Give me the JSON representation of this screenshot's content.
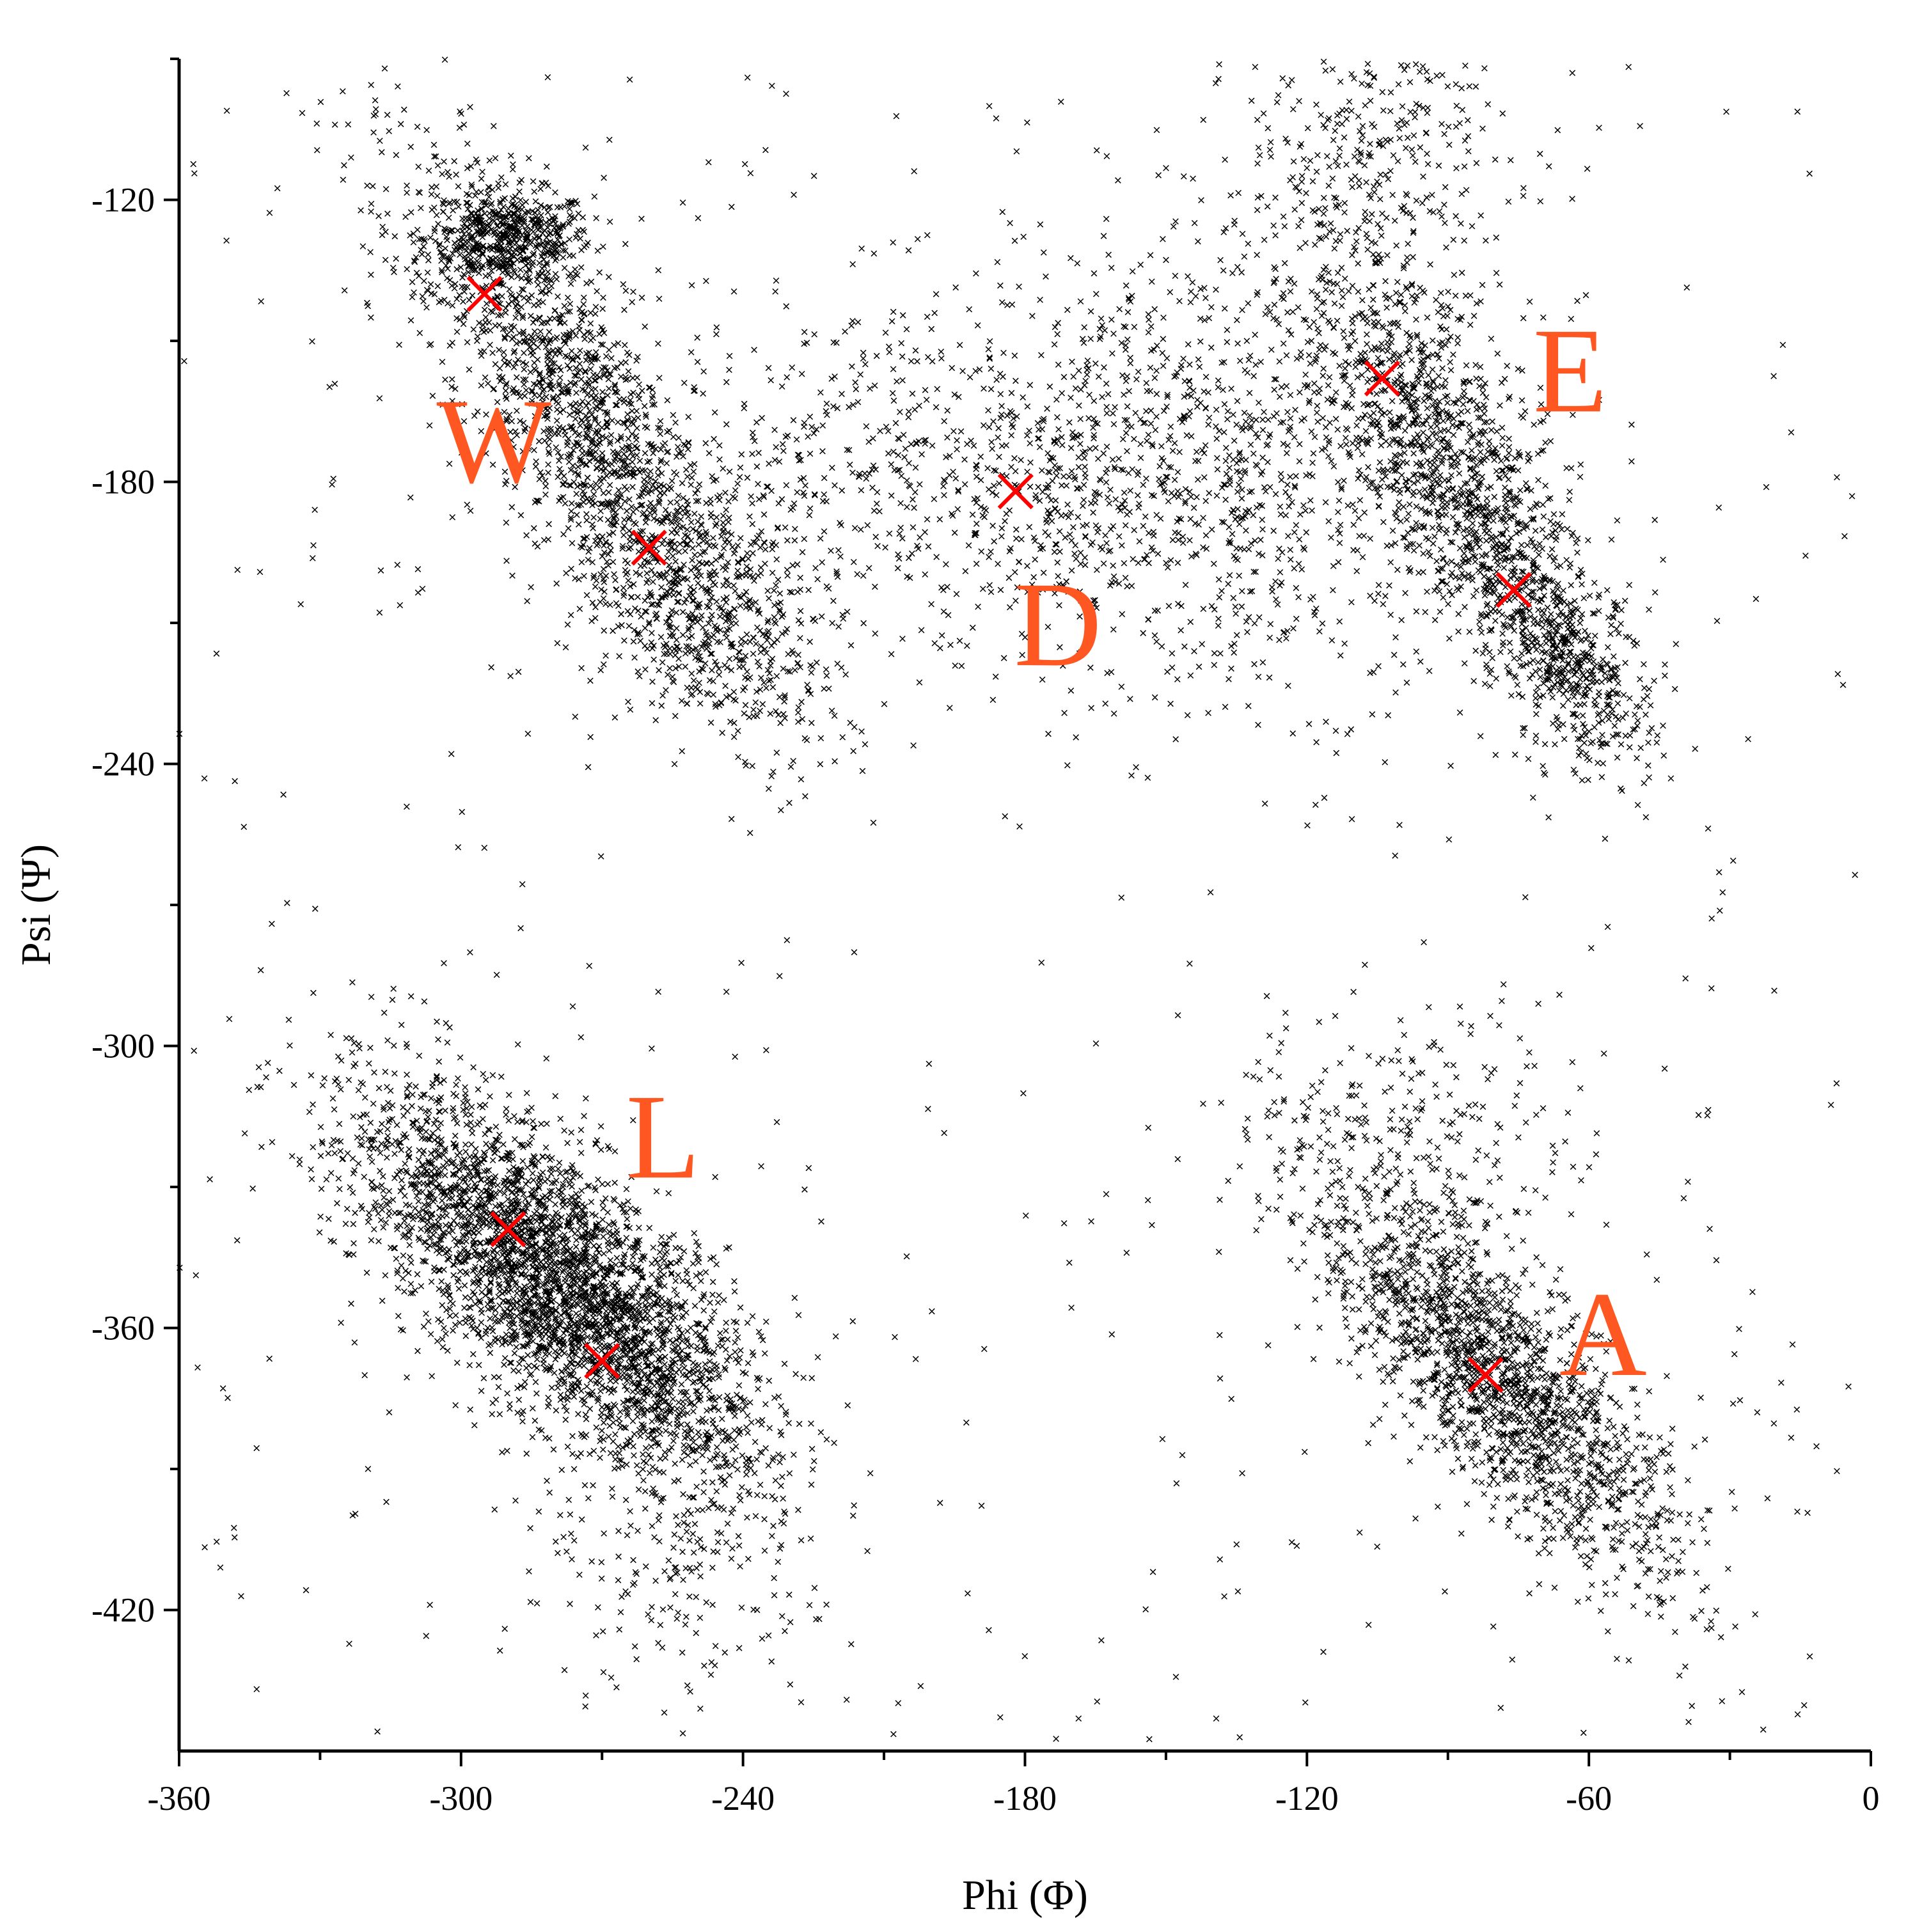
{
  "chart_data": {
    "type": "scatter",
    "title": "",
    "xlabel": "Phi (Φ)",
    "ylabel": "Psi (Ψ)",
    "xlim": [
      -360,
      0
    ],
    "ylim": [
      -450,
      -90
    ],
    "x_ticks": [
      -360,
      -300,
      -240,
      -180,
      -120,
      -60,
      0
    ],
    "y_ticks": [
      -120,
      -180,
      -240,
      -300,
      -360,
      -420
    ],
    "grid": false,
    "legend": "none",
    "point_marker": "x",
    "point_color": "#000000",
    "highlight_color": "#ff0000",
    "label_color": "#ff5722",
    "clusters": [
      {
        "label": "W",
        "label_pos": [
          -293,
          -180
        ]
      },
      {
        "label": "D",
        "label_pos": [
          -173,
          -219
        ]
      },
      {
        "label": "E",
        "label_pos": [
          -64,
          -165
        ]
      },
      {
        "label": "L",
        "label_pos": [
          -257,
          -328
        ]
      },
      {
        "label": "A",
        "label_pos": [
          -57,
          -370
        ]
      }
    ],
    "highlighted_points": [
      {
        "x": -295,
        "y": -140
      },
      {
        "x": -260,
        "y": -194
      },
      {
        "x": -182,
        "y": -182
      },
      {
        "x": -104,
        "y": -158
      },
      {
        "x": -76,
        "y": -203
      },
      {
        "x": -290,
        "y": -339
      },
      {
        "x": -270,
        "y": -367
      },
      {
        "x": -82,
        "y": -370
      }
    ]
  }
}
